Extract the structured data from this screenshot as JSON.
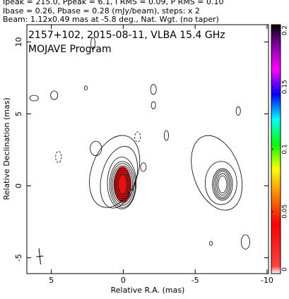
{
  "chart_data": {
    "type": "contour",
    "header": [
      "Ipeak = 215.0, Ppeak = 6.1, I RMS = 0.09, P RMS = 0.10",
      "Ibase = 0.26, Pbase = 0.28 (mJy/beam), steps: x 2",
      "Beam: 1.12x0.49 mas at -5.8 deg., Nat. Wgt. (no taper)"
    ],
    "title": "2157+102, 2015-08-11, VLBA 15.4 GHz",
    "subtitle": "MOJAVE Program",
    "x_label": "Relative R.A. (mas)",
    "y_label": "Relative Declination (mas)",
    "xlim": [
      6.7,
      -10.1
    ],
    "ylim": [
      -6.1,
      11.2
    ],
    "xticks": [
      5,
      0,
      -5,
      -10
    ],
    "yticks": [
      -5,
      0,
      5,
      10
    ],
    "colorbar": {
      "lim": [
        0,
        0.2
      ],
      "ticks": [
        0,
        0.05,
        0.1,
        0.15,
        0.2
      ]
    },
    "pol_fill": {
      "x": 0.05,
      "y": 0.1,
      "rx": 0.6,
      "ry": 1.25,
      "color": "#e81010"
    },
    "contours": [
      {
        "x": 0.05,
        "y": 0.1,
        "rx": 0.3,
        "ry": 0.7,
        "angle": 0,
        "dashed": false
      },
      {
        "x": 0.05,
        "y": 0.1,
        "rx": 0.4,
        "ry": 0.85,
        "angle": 0,
        "dashed": false
      },
      {
        "x": 0.05,
        "y": 0.1,
        "rx": 0.5,
        "ry": 1.0,
        "angle": 0,
        "dashed": false
      },
      {
        "x": 0.05,
        "y": 0.1,
        "rx": 0.6,
        "ry": 1.15,
        "angle": 0,
        "dashed": false
      },
      {
        "x": 0.05,
        "y": 0.1,
        "rx": 0.7,
        "ry": 1.3,
        "angle": 0,
        "dashed": false
      },
      {
        "x": 0.05,
        "y": 0.1,
        "rx": 0.8,
        "ry": 1.45,
        "angle": 0,
        "dashed": false
      },
      {
        "x": 0.05,
        "y": 0.1,
        "rx": 0.9,
        "ry": 1.6,
        "angle": 0,
        "dashed": false
      },
      {
        "x": 0.1,
        "y": 0.2,
        "rx": 1.0,
        "ry": 1.8,
        "angle": 0,
        "dashed": false
      },
      {
        "x": 0.3,
        "y": 0.6,
        "rx": 1.2,
        "ry": 2.2,
        "angle": 15,
        "dashed": false
      },
      {
        "x": 0.6,
        "y": 1.0,
        "rx": 1.6,
        "ry": 2.6,
        "angle": 20,
        "dashed": false
      },
      {
        "x": 1.9,
        "y": 2.6,
        "rx": 0.4,
        "ry": 0.5,
        "angle": 0,
        "dashed": false
      },
      {
        "x": -6.9,
        "y": 0.1,
        "rx": 0.3,
        "ry": 0.6,
        "angle": 0,
        "dashed": false
      },
      {
        "x": -6.9,
        "y": 0.1,
        "rx": 0.4,
        "ry": 0.75,
        "angle": 0,
        "dashed": false
      },
      {
        "x": -6.9,
        "y": 0.1,
        "rx": 0.5,
        "ry": 0.9,
        "angle": 0,
        "dashed": false
      },
      {
        "x": -6.9,
        "y": 0.1,
        "rx": 0.6,
        "ry": 1.0,
        "angle": 0,
        "dashed": false
      },
      {
        "x": -6.9,
        "y": 0.1,
        "rx": 0.7,
        "ry": 1.1,
        "angle": 0,
        "dashed": false
      },
      {
        "x": -6.8,
        "y": 0.2,
        "rx": 1.1,
        "ry": 1.5,
        "angle": 0,
        "dashed": false
      },
      {
        "x": -6.5,
        "y": 0.9,
        "rx": 1.6,
        "ry": 2.7,
        "angle": -20,
        "dashed": false
      },
      {
        "x": 6.2,
        "y": 6.1,
        "rx": 0.3,
        "ry": 0.2,
        "angle": 0,
        "dashed": false
      },
      {
        "x": 4.8,
        "y": 6.3,
        "rx": 0.25,
        "ry": 0.3,
        "angle": 0,
        "dashed": false
      },
      {
        "x": 2.6,
        "y": 6.8,
        "rx": 0.1,
        "ry": 0.15,
        "angle": 0,
        "dashed": false
      },
      {
        "x": -2.1,
        "y": 6.7,
        "rx": 0.2,
        "ry": 0.35,
        "angle": 0,
        "dashed": false
      },
      {
        "x": -2.1,
        "y": 5.6,
        "rx": 0.15,
        "ry": 0.25,
        "angle": 0,
        "dashed": false
      },
      {
        "x": -3.0,
        "y": 3.5,
        "rx": 0.15,
        "ry": 0.35,
        "angle": 0,
        "dashed": false
      },
      {
        "x": -1.4,
        "y": 1.3,
        "rx": 0.2,
        "ry": 0.3,
        "angle": 0,
        "dashed": false
      },
      {
        "x": -1.0,
        "y": 3.4,
        "rx": 0.2,
        "ry": 0.35,
        "angle": 0,
        "dashed": true
      },
      {
        "x": 4.5,
        "y": 2.0,
        "rx": 0.2,
        "ry": 0.4,
        "angle": 0,
        "dashed": true
      },
      {
        "x": 2.1,
        "y": 9.9,
        "rx": 0.15,
        "ry": 0.4,
        "angle": 0,
        "dashed": false
      },
      {
        "x": -6.1,
        "y": -4.0,
        "rx": 0.1,
        "ry": 0.15,
        "angle": 0,
        "dashed": false
      },
      {
        "x": -8.5,
        "y": -3.9,
        "rx": 0.3,
        "ry": 0.5,
        "angle": 0,
        "dashed": false
      },
      {
        "x": -8.0,
        "y": 5.2,
        "rx": 0.15,
        "ry": 0.3,
        "angle": 0,
        "dashed": false
      }
    ],
    "beam_marker": {
      "x": 5.8,
      "y": -4.9,
      "major": 1.12,
      "minor": 0.49,
      "angle": -5.8
    }
  }
}
